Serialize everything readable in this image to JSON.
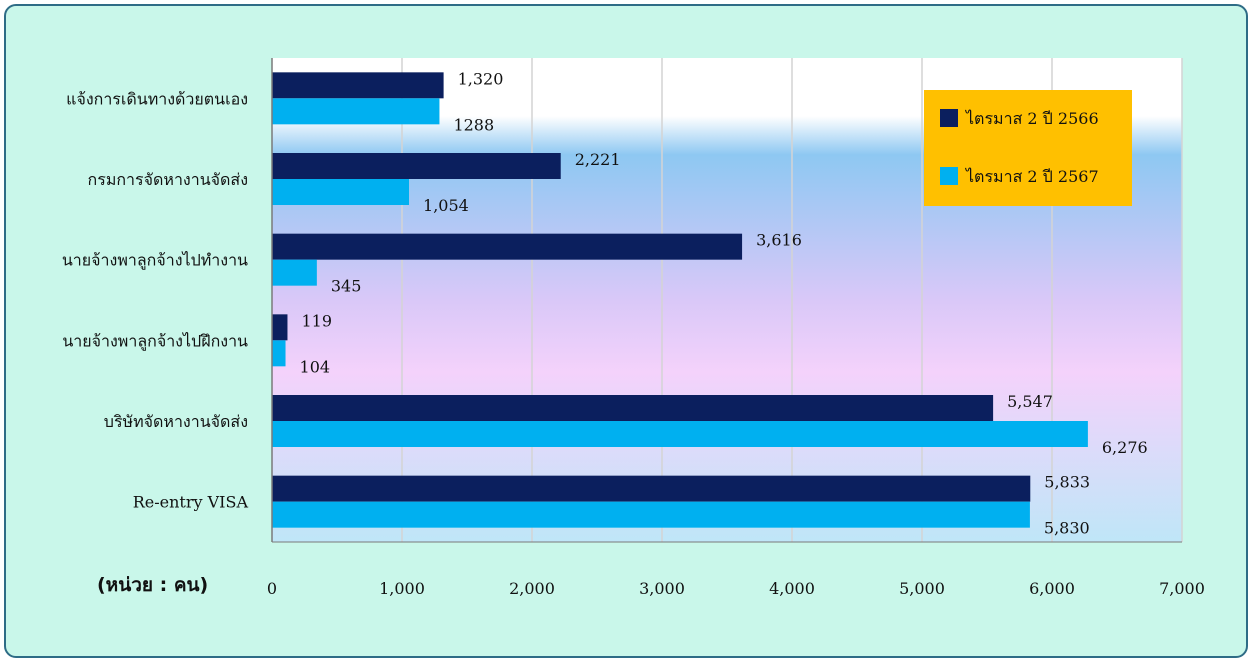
{
  "chart_data": {
    "type": "bar",
    "orientation": "horizontal",
    "categories": [
      "แจ้งการเดินทางด้วยตนเอง",
      "กรมการจัดหางานจัดส่ง",
      "นายจ้างพาลูกจ้างไปทำงาน",
      "นายจ้างพาลูกจ้างไปฝึกงาน",
      "บริษัทจัดหางานจัดส่ง",
      "Re-entry VISA"
    ],
    "series": [
      {
        "name": "ไตรมาส 2 ปี 2566",
        "color": "#0b1f5e",
        "values": [
          1320,
          2221,
          3616,
          119,
          5547,
          5833
        ],
        "labels": [
          "1,320",
          "2,221",
          "3,616",
          "119",
          "5,547",
          "5,833"
        ]
      },
      {
        "name": "ไตรมาส 2 ปี 2567",
        "color": "#00b0f0",
        "values": [
          1288,
          1054,
          345,
          104,
          6276,
          5830
        ],
        "labels": [
          "1288",
          "1,054",
          "345",
          "104",
          "6,276",
          "5,830"
        ]
      }
    ],
    "xlim": [
      0,
      7000
    ],
    "xticks": [
      0,
      1000,
      2000,
      3000,
      4000,
      5000,
      6000,
      7000
    ],
    "xtick_labels": [
      "0",
      "1,000",
      "2,000",
      "3,000",
      "4,000",
      "5,000",
      "6,000",
      "7,000"
    ],
    "unit_label": "(หน่วย : คน)",
    "grid": true,
    "legend_position": "top-right",
    "legend_background": "#ffc000",
    "plot_background": "gradient"
  }
}
